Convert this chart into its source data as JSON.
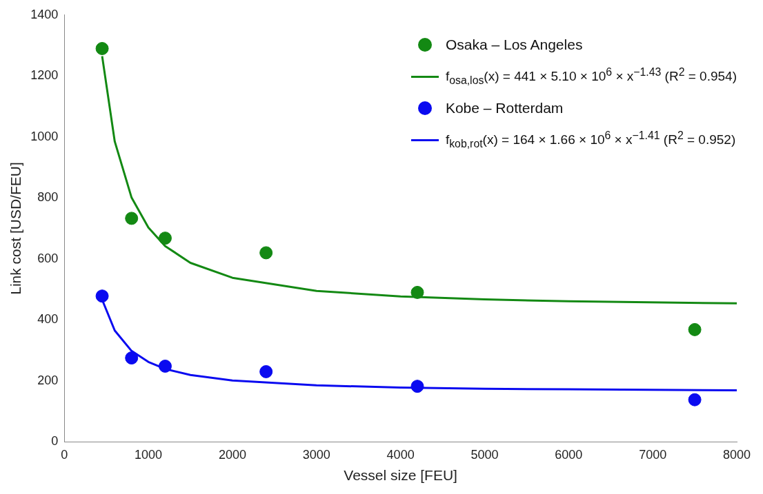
{
  "chart_data": {
    "type": "scatter",
    "xlabel": "Vessel size [FEU]",
    "ylabel": "Link cost [USD/FEU]",
    "xlim": [
      0,
      8000
    ],
    "xticks": [
      0,
      1000,
      2000,
      3000,
      4000,
      5000,
      6000,
      7000,
      8000
    ],
    "ylim": [
      0,
      1400
    ],
    "yticks": [
      0,
      200,
      400,
      600,
      800,
      1000,
      1200,
      1400
    ],
    "grid": false,
    "legend": "top right",
    "series": [
      {
        "name": "Osaka – Los Angeles",
        "marker": "circle",
        "color": "#138913",
        "x": [
          450,
          800,
          1200,
          2400,
          4200,
          7500
        ],
        "values": [
          1290,
          733,
          668,
          620,
          490,
          368
        ]
      },
      {
        "name": "f$_{osa,los}$(x) = 441 × 5.10 × 10$^{6}$ × x$^{−1.43}$  (R$^{2}$ = 0.954)",
        "type": "line",
        "marker": "none",
        "color": "#138913",
        "x": [
          450,
          600,
          800,
          1000,
          1200,
          1500,
          2000,
          3000,
          4000,
          5000,
          6000,
          8000
        ],
        "values": [
          1265,
          985,
          801,
          703,
          642,
          587,
          538,
          495,
          477,
          467,
          461,
          454
        ]
      },
      {
        "name": "Kobe – Rotterdam",
        "marker": "circle",
        "color": "#0a0af0",
        "x": [
          450,
          800,
          1200,
          2400,
          4200,
          7500
        ],
        "values": [
          478,
          275,
          248,
          230,
          182,
          138
        ]
      },
      {
        "name": "f$_{kob,rot}$(x) = 164 × 1.66 × 10$^{6}$ × x$^{−1.41}$  (R$^{2}$ = 0.952)",
        "type": "line",
        "marker": "none",
        "color": "#0a0af0",
        "x": [
          450,
          600,
          800,
          1000,
          1200,
          1500,
          2000,
          3000,
          4000,
          5000,
          6000,
          8000
        ],
        "values": [
          466,
          365,
          298,
          262,
          239,
          219,
          201,
          185,
          178,
          174,
          172,
          169
        ]
      }
    ]
  }
}
